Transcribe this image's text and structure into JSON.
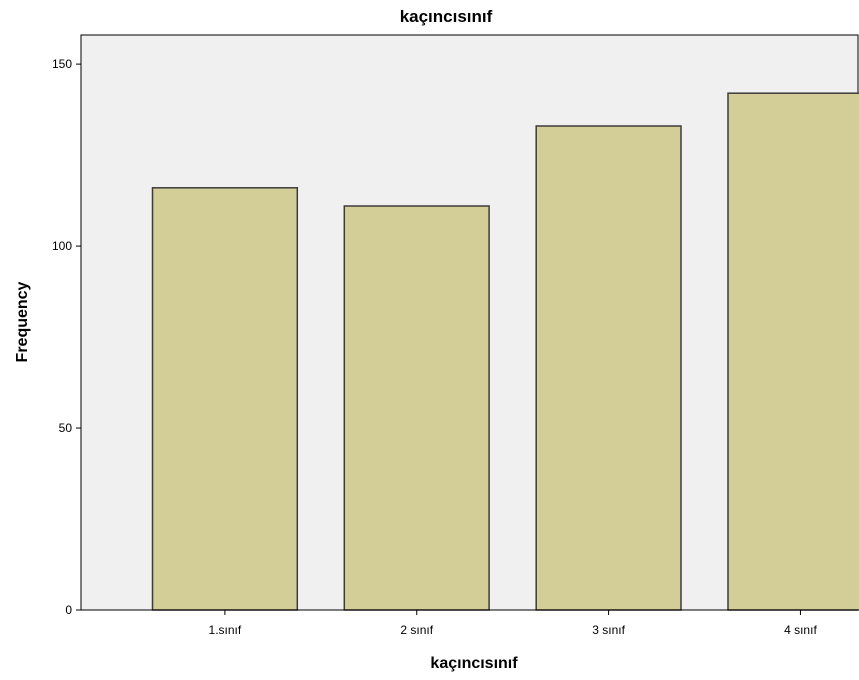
{
  "chart_data": {
    "type": "bar",
    "title": "kaçıncısınıf",
    "xlabel": "kaçıncısınıf",
    "ylabel": "Frequency",
    "categories": [
      "1.sınıf",
      "2 sınıf",
      "3 sınıf",
      "4 sınıf"
    ],
    "values": [
      116,
      111,
      133,
      142
    ],
    "ylim": [
      0,
      158
    ],
    "yticks": [
      0,
      50,
      100,
      150
    ],
    "grid": false,
    "legend": "none",
    "colors": {
      "plot_background": "#f0f0f0",
      "bar_fill": "#d3cd98",
      "bar_stroke": "#3c3c3c",
      "axis": "#000000"
    }
  }
}
